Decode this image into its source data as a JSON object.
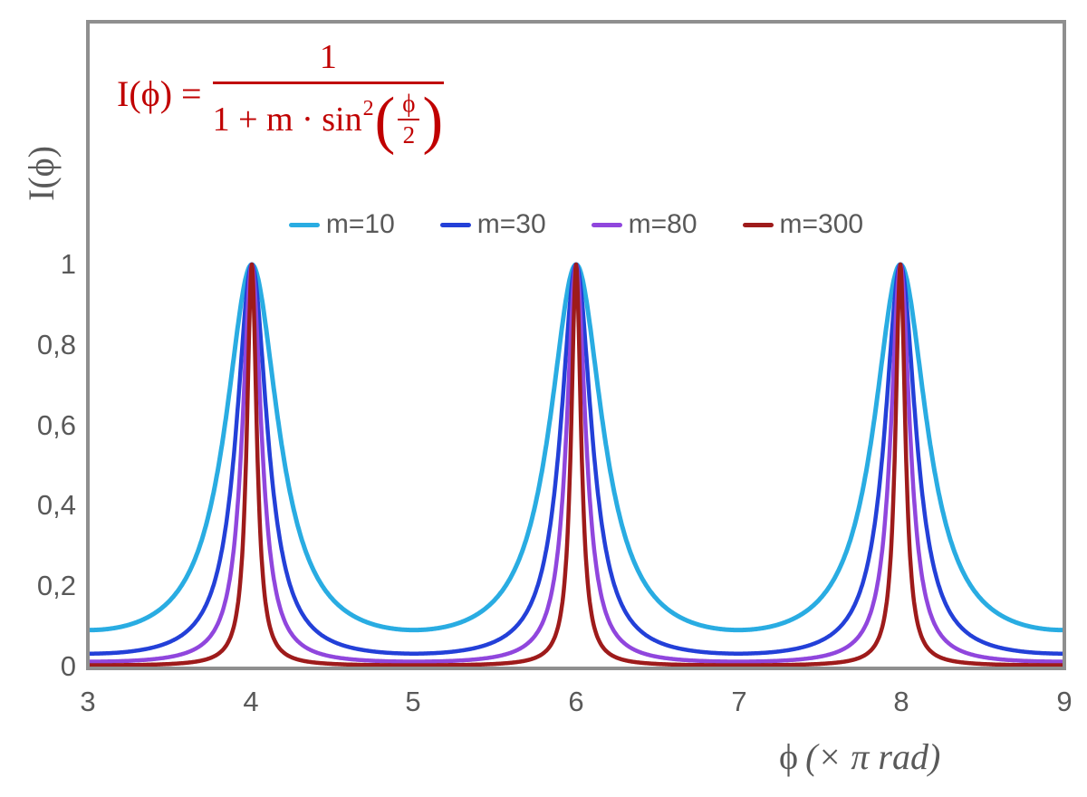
{
  "figure": {
    "background": "#FFFFFF",
    "frame_color": "#8F8F8F",
    "text_color": "#595959",
    "formula_color": "#C00000"
  },
  "formula": {
    "lhs": "I(ϕ) =",
    "numerator": "1",
    "den_text": "1 + m · sin",
    "den_exponent": "2",
    "paren_open": "(",
    "inner_numerator": "ϕ",
    "inner_denominator": "2",
    "paren_close": ")"
  },
  "chart_data": {
    "type": "line",
    "title": "",
    "function": "I(ϕ) = 1 / (1 + m·sin²(ϕ/2)), ϕ expressed in units of π rad",
    "xlabel": "ϕ (× π rad)",
    "xlabel_parts": {
      "upright": "ϕ",
      "italic": "(× π rad)"
    },
    "ylabel": "I(ϕ)",
    "xlim": [
      3,
      9
    ],
    "ylim": [
      0,
      1
    ],
    "grid": false,
    "legend_position": "top-center",
    "xticks": [
      "3",
      "4",
      "5",
      "6",
      "7",
      "8",
      "9"
    ],
    "yticks": [
      "1",
      "0,8",
      "0,6",
      "0,4",
      "0,2",
      "0"
    ],
    "ytick_values": [
      1,
      0.8,
      0.6,
      0.4,
      0.2,
      0
    ],
    "decimal_separator": ",",
    "series": [
      {
        "name": "m=10",
        "m": 10,
        "color": "#29ACE2",
        "stroke_width": 5
      },
      {
        "name": "m=30",
        "m": 30,
        "color": "#2340D8",
        "stroke_width": 4.5
      },
      {
        "name": "m=80",
        "m": 80,
        "color": "#9046DD",
        "stroke_width": 4.5
      },
      {
        "name": "m=300",
        "m": 300,
        "color": "#9E1B1B",
        "stroke_width": 4.5
      }
    ],
    "peaks_at_x": [
      4,
      6,
      8
    ],
    "peak_value": 1,
    "sample_values_at_x3": {
      "m=10": 0.0909,
      "m=30": 0.0323,
      "m=80": 0.0123,
      "m=300": 0.0033
    }
  }
}
